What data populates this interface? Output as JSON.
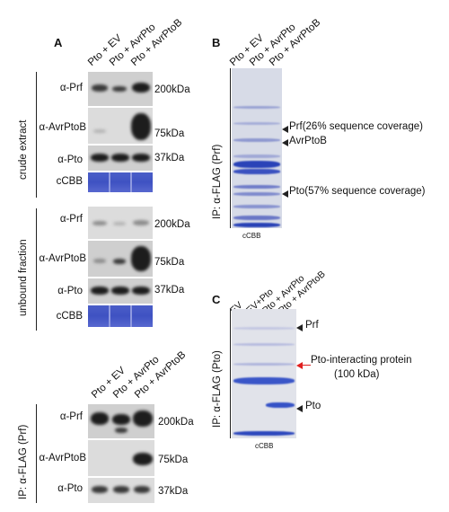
{
  "panel_a": {
    "letter": "A",
    "lanes": [
      "Pto + EV",
      "Pto + AvrPto",
      "Pto + AvrPtoB"
    ],
    "section_crude": "crude extract",
    "section_unbound": "unbound fraction",
    "section_ip": "IP: α-FLAG (Prf)",
    "crude": {
      "ab1": "α-Prf",
      "kda1": "200kDa",
      "ab2": "α-AvrPtoB",
      "kda2": "75kDa",
      "ab3": "α-Pto",
      "kda3": "37kDa",
      "stain": "cCBB"
    },
    "unbound": {
      "ab1": "α-Prf",
      "kda1": "200kDa",
      "ab2": "α-AvrPtoB",
      "kda2": "75kDa",
      "ab3": "α-Pto",
      "kda3": "37kDa",
      "stain": "cCBB"
    },
    "ip": {
      "ab1": "α-Prf",
      "kda1": "200kDa",
      "ab2": "α-AvrPtoB",
      "kda2": "75kDa",
      "ab3": "α-Pto",
      "kda3": "37kDa"
    }
  },
  "panel_b": {
    "letter": "B",
    "lanes": [
      "Pto + EV",
      "Pto + AvrPto",
      "Pto + AvrPtoB"
    ],
    "side_label": "IP: α-FLAG (Prf)",
    "annotations": {
      "prf": "Prf(26% sequence coverage)",
      "avrptob": "AvrPtoB",
      "pto": "Pto(57% sequence coverage)"
    },
    "caption": "cCBB"
  },
  "panel_c": {
    "letter": "C",
    "lanes": [
      "EV",
      "EV+Pto",
      "Pto + AvrPto",
      "Pto + AvrPtoB"
    ],
    "side_label": "IP: α-FLAG (Pto)",
    "annotations": {
      "prf": "Prf",
      "interacting_1": "Pto-interacting protein",
      "interacting_2": "(100 kDa)",
      "pto": "Pto"
    },
    "caption": "cCBB"
  }
}
